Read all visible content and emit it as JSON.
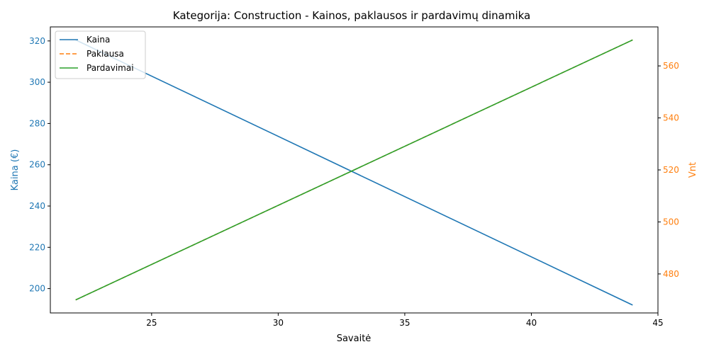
{
  "chart_data": {
    "type": "line",
    "title": "Kategorija: Construction - Kainos, paklausos ir pardavimų dinamika",
    "xlabel": "Savaitė",
    "ylabel_left": "Kaina (€)",
    "ylabel_right": "Vnt",
    "x_range": [
      21.0,
      45.0
    ],
    "y_left_range": [
      188.2,
      326.8
    ],
    "y_right_range": [
      465.0,
      575.0
    ],
    "x_ticks": [
      25,
      30,
      35,
      40,
      45
    ],
    "y_left_ticks": [
      200,
      220,
      240,
      260,
      280,
      300,
      320
    ],
    "y_right_ticks": [
      480,
      500,
      520,
      540,
      560
    ],
    "legend_position": "top-left",
    "grid": false,
    "series": [
      {
        "name": "Kaina",
        "axis": "left",
        "style": "solid",
        "color": "#1f77b4",
        "x": [
          22,
          44
        ],
        "values": [
          320.5,
          192
        ]
      },
      {
        "name": "Paklausa",
        "axis": "right",
        "style": "dashed",
        "color": "#ff7f0e",
        "x": [
          22,
          44
        ],
        "values": [
          470,
          570
        ]
      },
      {
        "name": "Pardavimai",
        "axis": "right",
        "style": "solid",
        "color": "#2ca02c",
        "x": [
          22,
          44
        ],
        "values": [
          470,
          570
        ]
      }
    ],
    "left_axis_color": "#1f77b4",
    "right_axis_color": "#ff7f0e"
  }
}
